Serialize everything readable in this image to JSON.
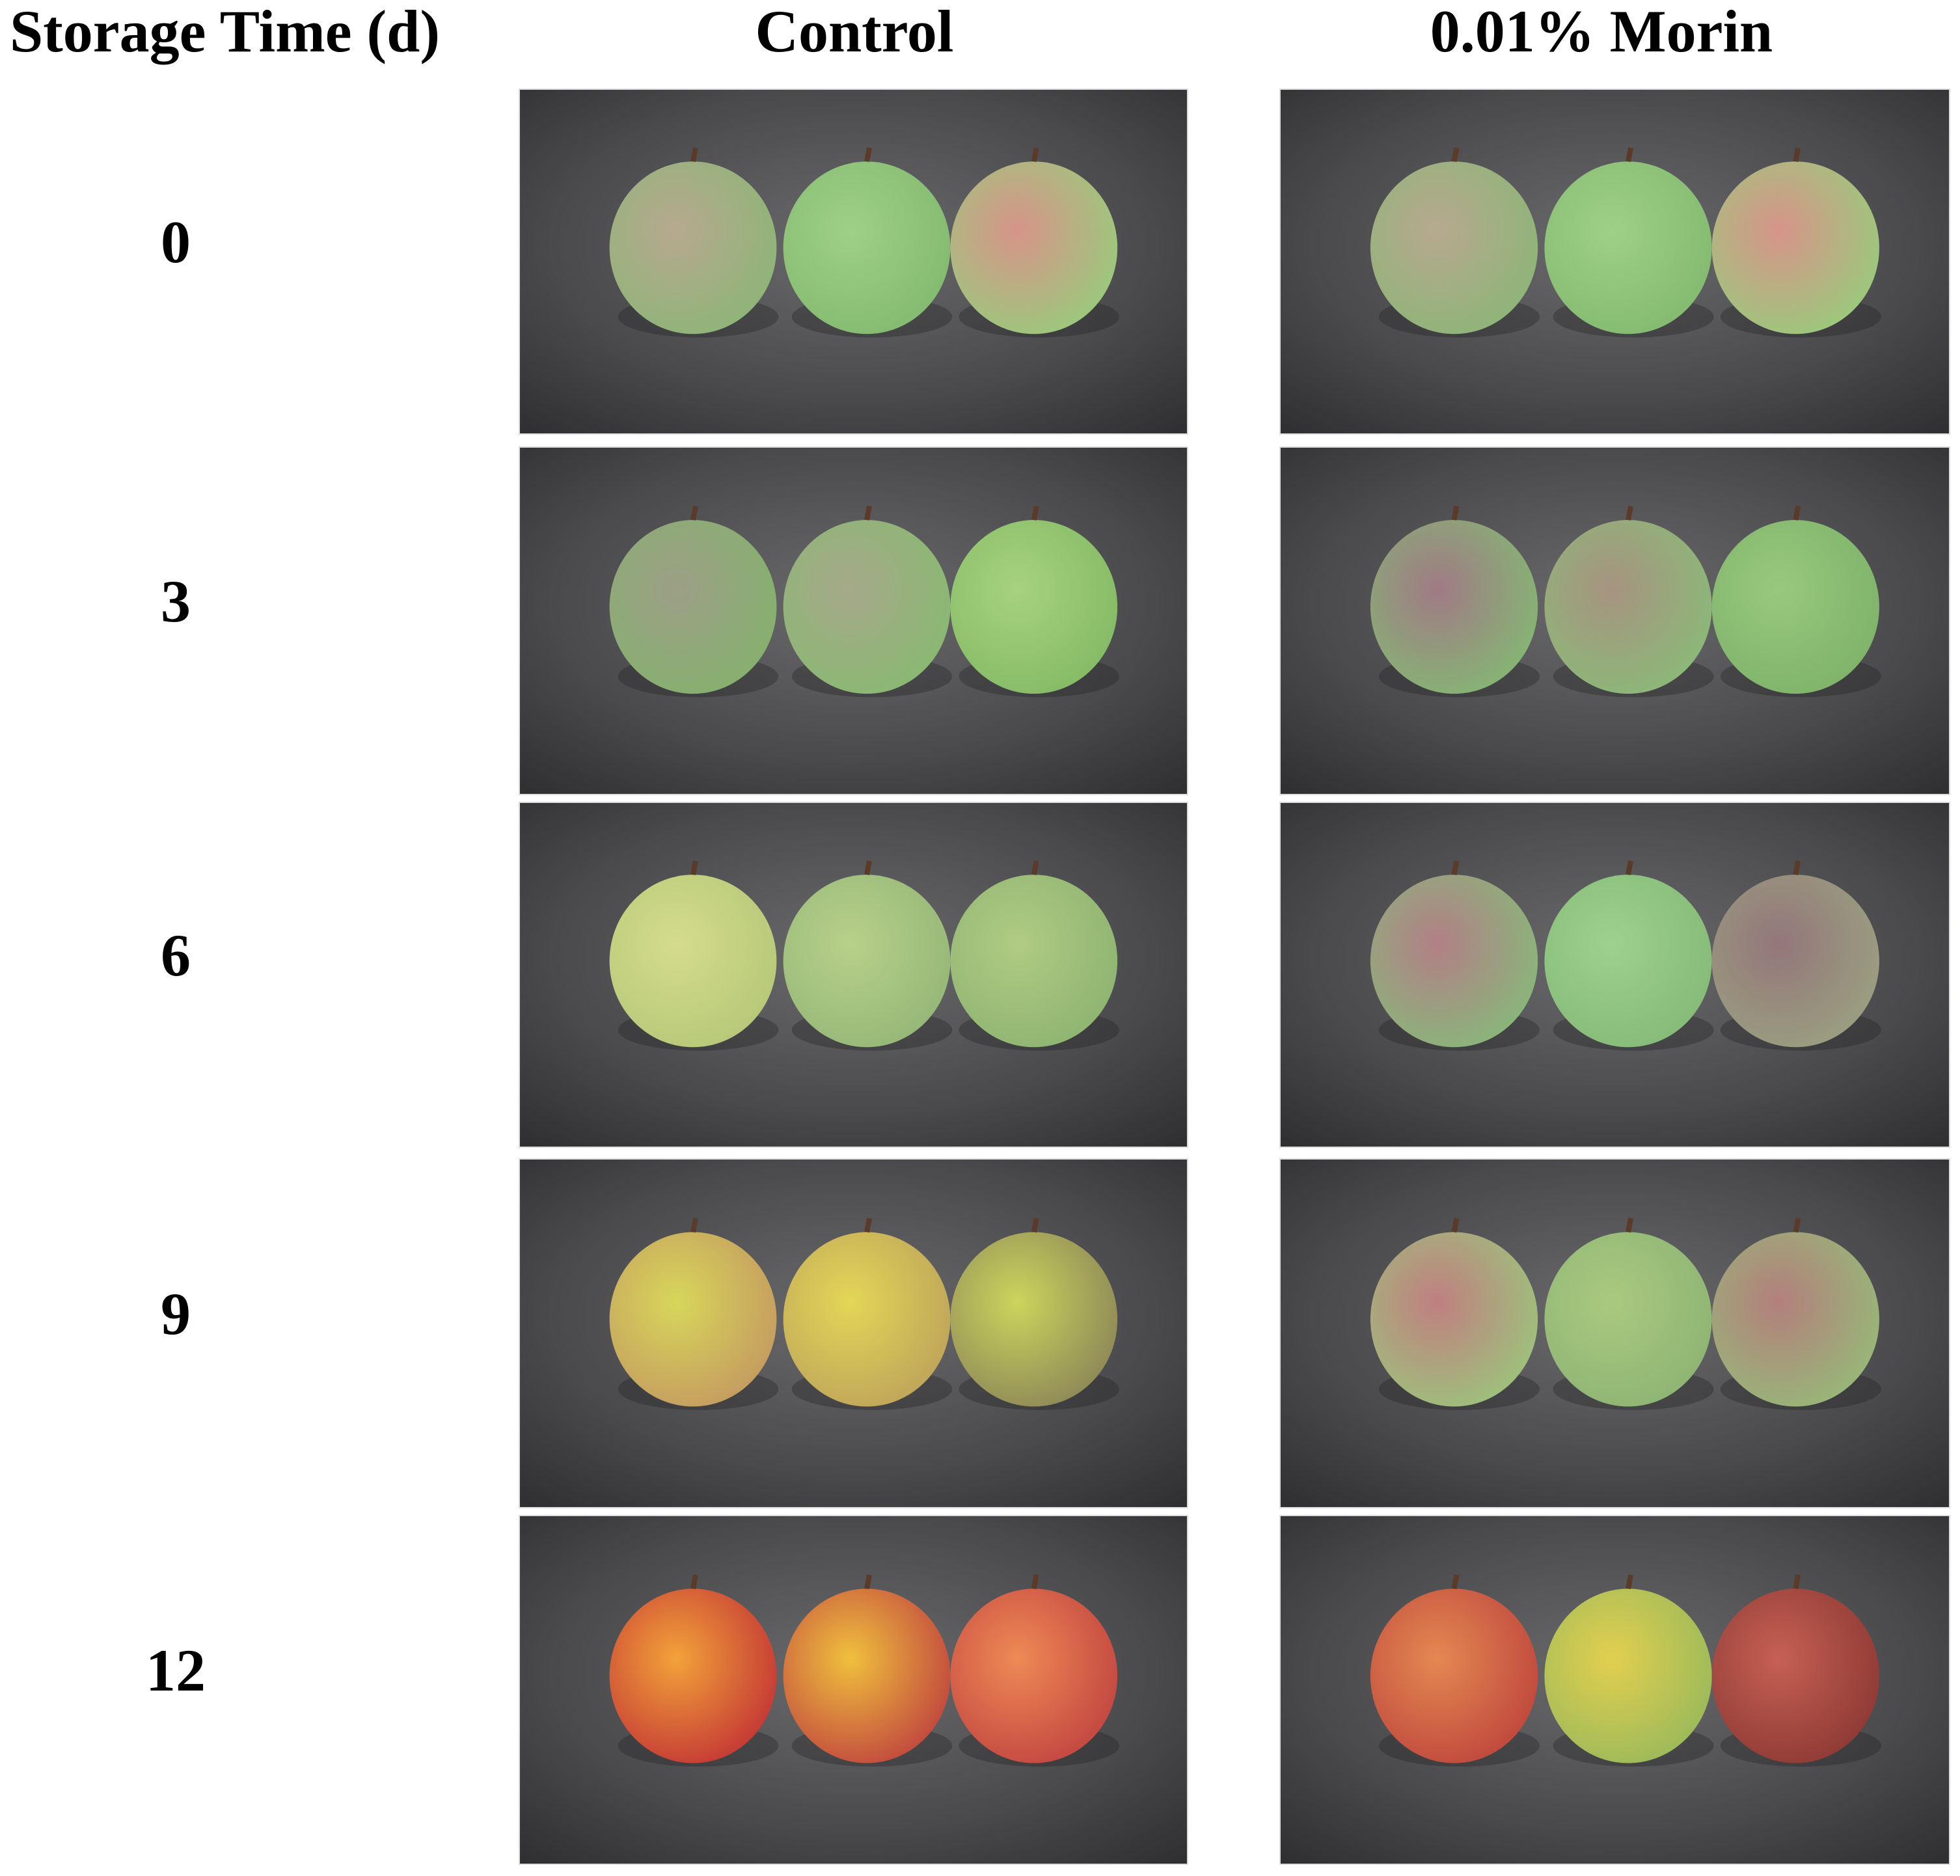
{
  "header": {
    "row_label_title": "Storage Time (d)",
    "columns": [
      "Control",
      "0.01% Morin"
    ]
  },
  "rows": [
    {
      "day": 0
    },
    {
      "day": 3
    },
    {
      "day": 6
    },
    {
      "day": 9
    },
    {
      "day": 12
    }
  ]
}
